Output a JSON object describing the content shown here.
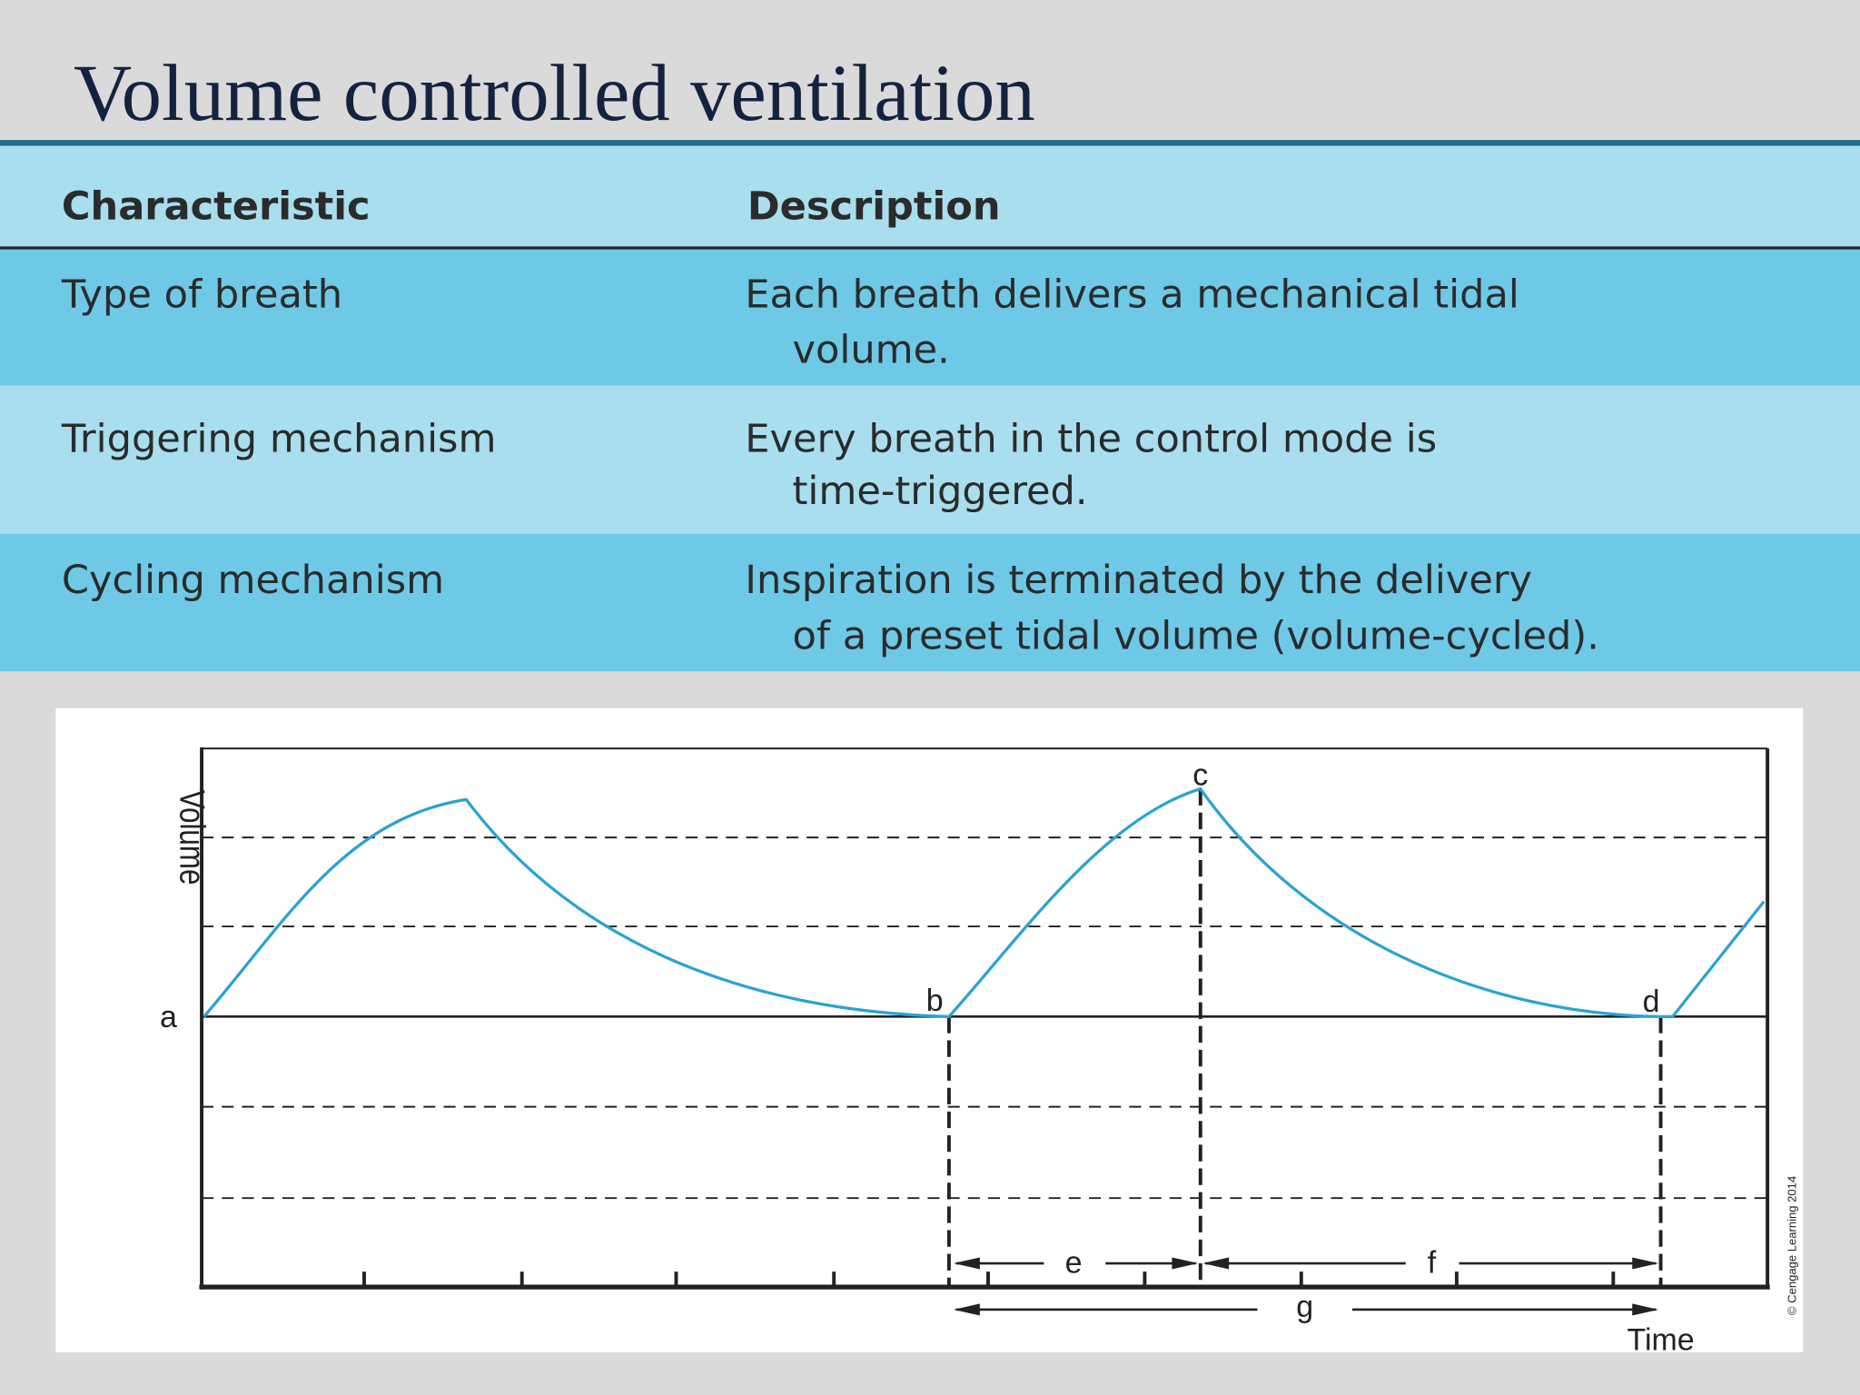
{
  "title": "Volume controlled ventilation",
  "table": {
    "header": [
      "Characteristic",
      "Description"
    ],
    "rows": [
      [
        "Type of breath",
        [
          "Each breath delivers a mechanical tidal",
          "volume."
        ]
      ],
      [
        "Triggering mechanism",
        [
          "Every breath in the control mode is",
          "time-triggered."
        ]
      ],
      [
        "Cycling mechanism",
        [
          "Inspiration is terminated by the delivery",
          "of a preset tidal volume (volume-cycled)."
        ]
      ]
    ]
  },
  "diagram": {
    "y_axis_label": "Volume",
    "x_axis_label": "Time",
    "points": [
      "a",
      "b",
      "c",
      "d"
    ],
    "intervals": [
      "e",
      "f",
      "g"
    ],
    "credit": "© Cengage Learning 2014"
  }
}
